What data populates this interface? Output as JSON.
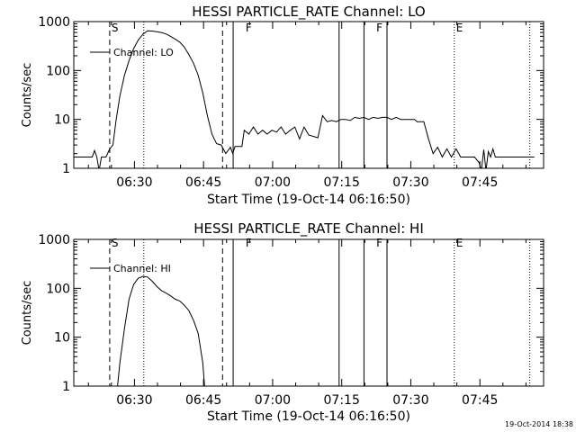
{
  "timestamp": "19-Oct-2014 18:38",
  "chart_data": [
    {
      "type": "line",
      "title": "HESSI PARTICLE_RATE Channel: LO",
      "xlabel": "Start Time (19-Oct-14 06:16:50)",
      "ylabel": "Counts/sec",
      "yscale": "log",
      "ylim": [
        1,
        1000
      ],
      "xlim_minutes": [
        0,
        102
      ],
      "x_ticks": [
        {
          "label": "06:30",
          "t": 13.17
        },
        {
          "label": "06:45",
          "t": 28.17
        },
        {
          "label": "07:00",
          "t": 43.17
        },
        {
          "label": "07:15",
          "t": 58.17
        },
        {
          "label": "07:30",
          "t": 73.17
        },
        {
          "label": "07:45",
          "t": 88.17
        }
      ],
      "y_ticks": [
        {
          "label": "1",
          "v": 1
        },
        {
          "label": "10",
          "v": 10
        },
        {
          "label": "100",
          "v": 100
        },
        {
          "label": "1000",
          "v": 1000
        }
      ],
      "legend": "Channel: LO",
      "flags": [
        {
          "label": "S",
          "t": 7.8
        },
        {
          "label": "F",
          "t": 36.9
        },
        {
          "label": "F",
          "t": 65.3
        },
        {
          "label": "E",
          "t": 82.6
        }
      ],
      "series": [
        {
          "name": "Channel: LO",
          "points": [
            [
              0,
              1.7
            ],
            [
              4,
              1.7
            ],
            [
              4.5,
              2.3
            ],
            [
              5,
              1.7
            ],
            [
              5.5,
              0.9
            ],
            [
              6,
              1.7
            ],
            [
              7,
              1.7
            ],
            [
              7.8,
              2.5
            ],
            [
              8.5,
              3
            ],
            [
              9.2,
              10
            ],
            [
              10,
              30
            ],
            [
              11,
              80
            ],
            [
              12,
              160
            ],
            [
              13,
              280
            ],
            [
              14,
              420
            ],
            [
              15,
              550
            ],
            [
              16,
              650
            ],
            [
              17,
              640
            ],
            [
              18,
              620
            ],
            [
              19,
              600
            ],
            [
              20,
              560
            ],
            [
              21,
              500
            ],
            [
              22,
              440
            ],
            [
              23,
              380
            ],
            [
              24,
              300
            ],
            [
              25,
              210
            ],
            [
              26,
              140
            ],
            [
              27,
              80
            ],
            [
              28,
              35
            ],
            [
              29,
              12
            ],
            [
              30,
              5
            ],
            [
              31,
              3.2
            ],
            [
              32,
              3
            ],
            [
              33,
              2
            ],
            [
              34,
              2.7
            ],
            [
              34.5,
              2
            ],
            [
              35,
              2.8
            ],
            [
              36.5,
              2.8
            ],
            [
              37,
              6
            ],
            [
              38,
              5
            ],
            [
              39,
              7
            ],
            [
              40,
              5
            ],
            [
              41,
              6
            ],
            [
              42,
              5
            ],
            [
              43,
              6
            ],
            [
              44,
              5.5
            ],
            [
              45,
              7
            ],
            [
              46,
              5
            ],
            [
              47,
              6
            ],
            [
              48,
              7
            ],
            [
              49,
              4
            ],
            [
              50,
              7
            ],
            [
              51,
              4.8
            ],
            [
              52,
              4.5
            ],
            [
              53,
              4.2
            ],
            [
              54,
              12
            ],
            [
              55,
              9
            ],
            [
              56,
              9.5
            ],
            [
              57,
              9
            ],
            [
              58,
              10
            ],
            [
              59,
              10
            ],
            [
              60,
              9.5
            ],
            [
              61,
              11
            ],
            [
              62,
              10.5
            ],
            [
              63,
              11
            ],
            [
              64,
              10
            ],
            [
              65,
              11
            ],
            [
              66,
              10.5
            ],
            [
              67,
              11
            ],
            [
              68,
              11
            ],
            [
              69,
              10
            ],
            [
              70,
              11
            ],
            [
              71,
              10
            ],
            [
              72,
              10
            ],
            [
              73,
              10
            ],
            [
              74,
              10
            ],
            [
              74.5,
              9
            ],
            [
              76,
              9
            ],
            [
              77,
              4
            ],
            [
              78,
              2
            ],
            [
              79,
              2.7
            ],
            [
              80,
              1.7
            ],
            [
              81,
              2.5
            ],
            [
              82,
              1.7
            ],
            [
              83,
              2.5
            ],
            [
              84,
              1.7
            ],
            [
              87,
              1.7
            ],
            [
              88,
              1.3
            ],
            [
              88.5,
              0.9
            ],
            [
              89,
              2.4
            ],
            [
              89.5,
              0.9
            ],
            [
              90,
              2.2
            ],
            [
              90.5,
              1.7
            ],
            [
              91,
              2.5
            ],
            [
              91.5,
              1.7
            ],
            [
              92,
              1.7
            ],
            [
              100,
              1.7
            ]
          ]
        }
      ]
    },
    {
      "type": "line",
      "title": "HESSI PARTICLE_RATE Channel: HI",
      "xlabel": "Start Time (19-Oct-14 06:16:50)",
      "ylabel": "Counts/sec",
      "yscale": "log",
      "ylim": [
        1,
        1000
      ],
      "xlim_minutes": [
        0,
        102
      ],
      "x_ticks": [
        {
          "label": "06:30",
          "t": 13.17
        },
        {
          "label": "06:45",
          "t": 28.17
        },
        {
          "label": "07:00",
          "t": 43.17
        },
        {
          "label": "07:15",
          "t": 58.17
        },
        {
          "label": "07:30",
          "t": 73.17
        },
        {
          "label": "07:45",
          "t": 88.17
        }
      ],
      "y_ticks": [
        {
          "label": "1",
          "v": 1
        },
        {
          "label": "10",
          "v": 10
        },
        {
          "label": "100",
          "v": 100
        },
        {
          "label": "1000",
          "v": 1000
        }
      ],
      "legend": "Channel: HI",
      "flags": [
        {
          "label": "S",
          "t": 7.8
        },
        {
          "label": "F",
          "t": 36.9
        },
        {
          "label": "F",
          "t": 65.3
        },
        {
          "label": "E",
          "t": 82.6
        }
      ],
      "series": [
        {
          "name": "Channel: HI",
          "points": [
            [
              9.5,
              1
            ],
            [
              10,
              3
            ],
            [
              11,
              15
            ],
            [
              12,
              60
            ],
            [
              13,
              120
            ],
            [
              14,
              160
            ],
            [
              15,
              175
            ],
            [
              16,
              170
            ],
            [
              17,
              140
            ],
            [
              18,
              110
            ],
            [
              19,
              90
            ],
            [
              20,
              80
            ],
            [
              21,
              70
            ],
            [
              22,
              60
            ],
            [
              23,
              55
            ],
            [
              24,
              45
            ],
            [
              25,
              35
            ],
            [
              26,
              22
            ],
            [
              27,
              12
            ],
            [
              28,
              3
            ],
            [
              28.4,
              1
            ]
          ]
        }
      ]
    }
  ]
}
